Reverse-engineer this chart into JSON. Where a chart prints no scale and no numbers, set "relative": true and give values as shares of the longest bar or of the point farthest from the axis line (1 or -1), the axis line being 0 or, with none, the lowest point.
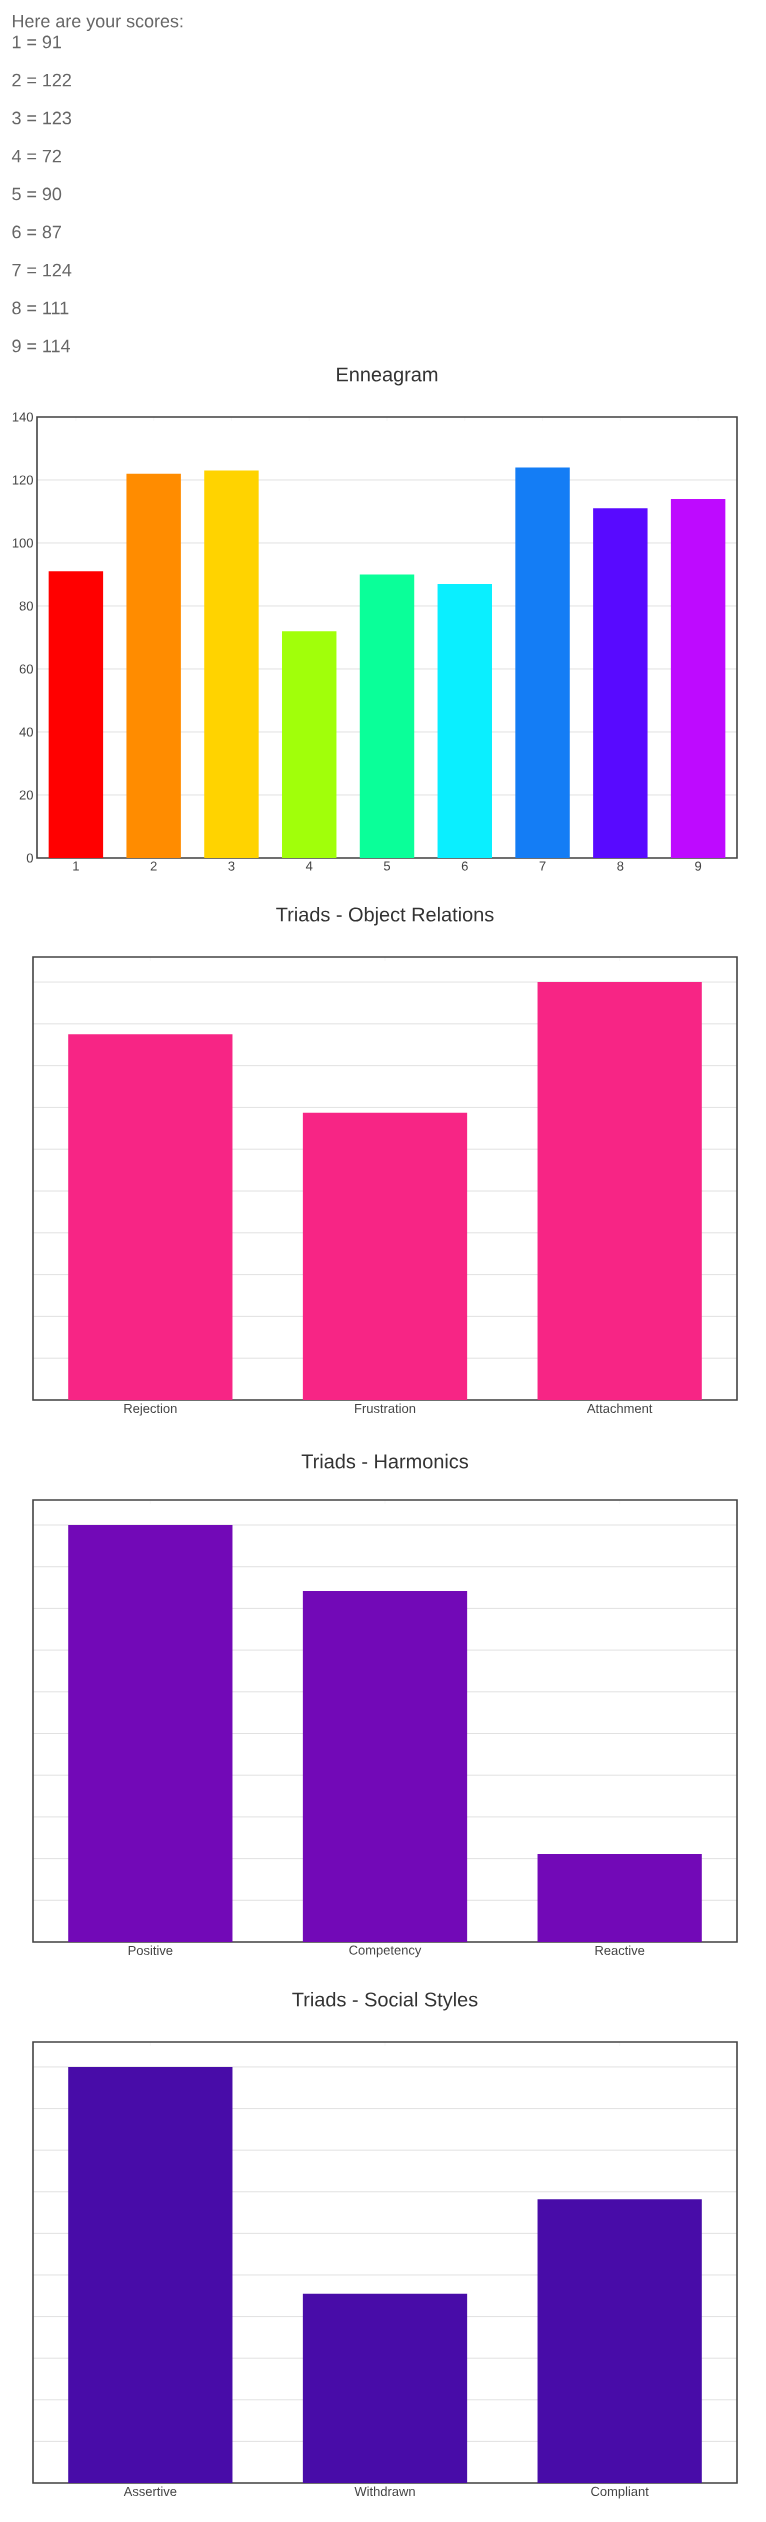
{
  "chart_data": [
    {
      "type": "bar",
      "title": "Enneagram",
      "annotations": [
        "Here are your scores:",
        "1 = 91",
        "2 = 122",
        "3 = 123",
        "4 = 72",
        "5 = 90",
        "6 = 87",
        "7 = 124",
        "8 = 111",
        "9 = 114"
      ],
      "categories": [
        "1",
        "2",
        "3",
        "4",
        "5",
        "6",
        "7",
        "8",
        "9"
      ],
      "values": [
        91,
        122,
        123,
        72,
        90,
        87,
        124,
        111,
        114
      ],
      "colors": [
        "#ff0000",
        "#ff8c00",
        "#ffd300",
        "#a1ff0a",
        "#0aff99",
        "#0aefff",
        "#147df5",
        "#580aff",
        "#be0aff"
      ],
      "ylim": [
        0,
        140
      ],
      "yticks": [
        0,
        20,
        40,
        60,
        80,
        100,
        120,
        140
      ],
      "grid": "y"
    },
    {
      "type": "bar",
      "title": "Triads - Object Relations",
      "categories": [
        "Rejection",
        "Frustration",
        "Attachment"
      ],
      "values": [
        0.875,
        0.687,
        1
      ],
      "colors": [
        "#f72585",
        "#f72585",
        "#f72585"
      ],
      "relative": true,
      "grid": "y"
    },
    {
      "type": "bar",
      "title": "Triads - Harmonics",
      "categories": [
        "Positive",
        "Competency",
        "Reactive"
      ],
      "values": [
        1,
        0.842,
        0.211
      ],
      "colors": [
        "#7209b7",
        "#7209b7",
        "#7209b7"
      ],
      "relative": true,
      "grid": "y"
    },
    {
      "type": "bar",
      "title": "Triads - Social Styles",
      "categories": [
        "Assertive",
        "Withdrawn",
        "Compliant"
      ],
      "values": [
        1,
        0.455,
        0.682
      ],
      "colors": [
        "#480ca8",
        "#480ca8",
        "#480ca8"
      ],
      "relative": true,
      "grid": "y"
    }
  ]
}
